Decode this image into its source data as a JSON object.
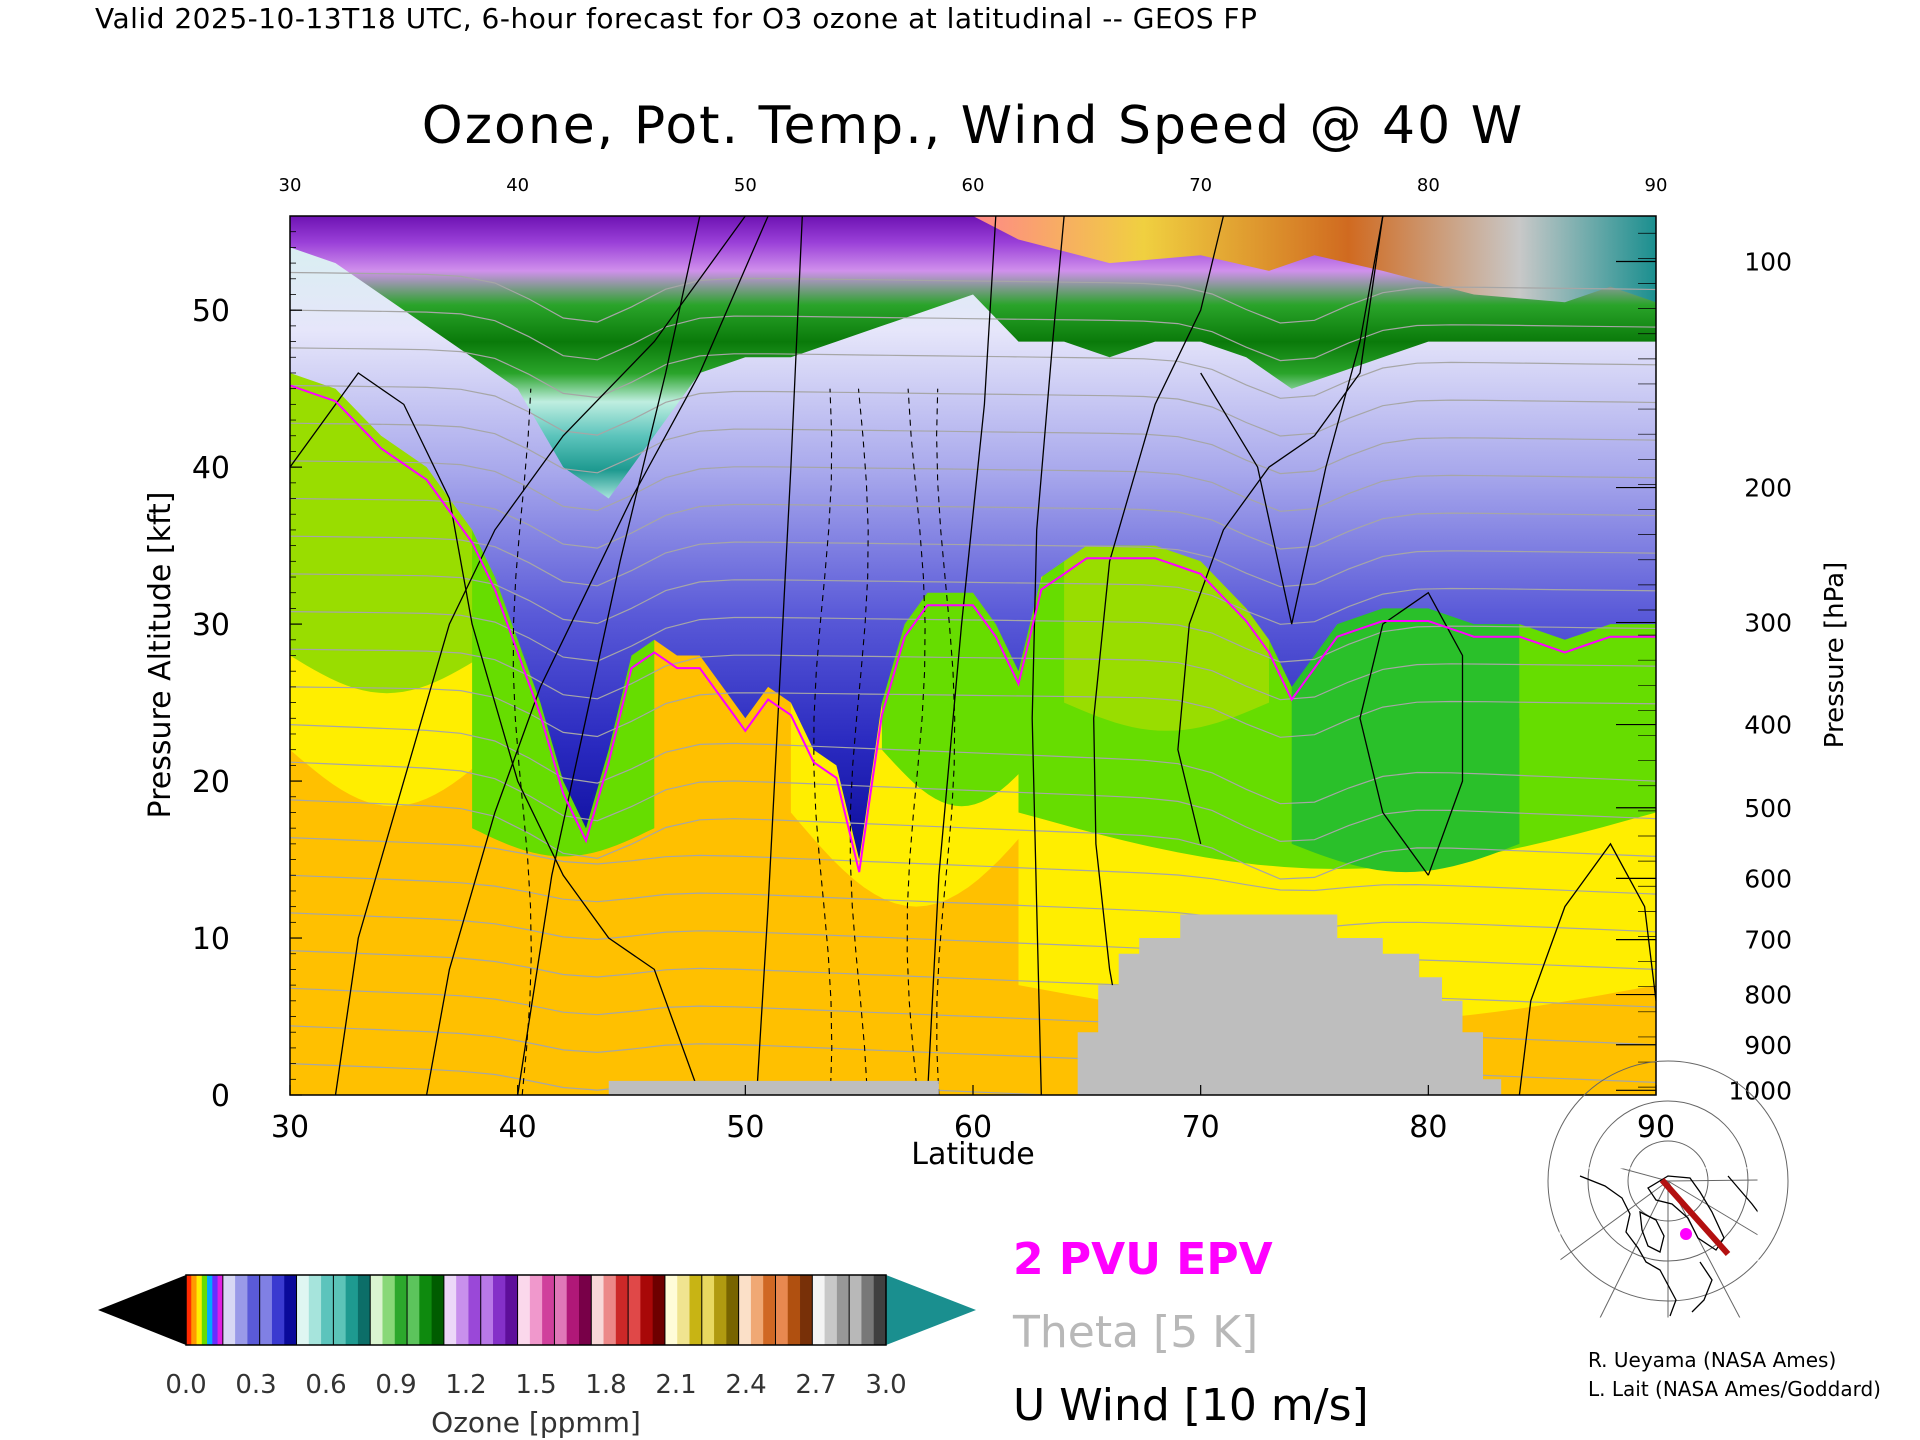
{
  "header": {
    "text": "Valid 2025-10-13T18 UTC, 6-hour forecast for O3 ozone at latitudinal -- GEOS FP"
  },
  "chart_data": {
    "type": "heatmap",
    "title": "Ozone, Pot. Temp., Wind Speed @ 40 W",
    "xlabel": "Latitude",
    "ylabel": "Pressure Altitude [kft]",
    "y2label": "Pressure [hPa]",
    "xlim": [
      30,
      90
    ],
    "ylim": [
      0,
      56
    ],
    "x_ticks": [
      30,
      40,
      50,
      60,
      70,
      80,
      90
    ],
    "y_ticks": [
      0,
      10,
      20,
      30,
      40,
      50
    ],
    "top_ticks": [
      30,
      40,
      50,
      60,
      70,
      80,
      90
    ],
    "pressure_ticks": [
      {
        "hpa": 100,
        "kft": 53.1
      },
      {
        "hpa": 200,
        "kft": 38.7
      },
      {
        "hpa": 300,
        "kft": 30.1
      },
      {
        "hpa": 400,
        "kft": 23.6
      },
      {
        "hpa": 500,
        "kft": 18.3
      },
      {
        "hpa": 600,
        "kft": 13.8
      },
      {
        "hpa": 700,
        "kft": 9.9
      },
      {
        "hpa": 800,
        "kft": 6.4
      },
      {
        "hpa": 900,
        "kft": 3.2
      },
      {
        "hpa": 1000,
        "kft": 0.3
      }
    ],
    "ozone_tropopause_kft": [
      [
        30,
        46
      ],
      [
        32,
        45
      ],
      [
        34,
        42
      ],
      [
        36,
        40
      ],
      [
        38,
        36
      ],
      [
        39,
        33
      ],
      [
        40,
        29
      ],
      [
        41,
        25
      ],
      [
        42,
        20
      ],
      [
        43,
        17
      ],
      [
        44,
        22
      ],
      [
        45,
        28
      ],
      [
        46,
        29
      ],
      [
        47,
        28
      ],
      [
        48,
        28
      ],
      [
        49,
        26
      ],
      [
        50,
        24
      ],
      [
        51,
        26
      ],
      [
        52,
        25
      ],
      [
        53,
        22
      ],
      [
        54,
        21
      ],
      [
        55,
        15
      ],
      [
        56,
        25
      ],
      [
        57,
        30
      ],
      [
        58,
        32
      ],
      [
        59,
        32
      ],
      [
        60,
        32
      ],
      [
        61,
        30
      ],
      [
        62,
        27
      ],
      [
        63,
        33
      ],
      [
        64,
        34
      ],
      [
        65,
        35
      ],
      [
        66,
        35
      ],
      [
        68,
        35
      ],
      [
        70,
        34
      ],
      [
        72,
        31
      ],
      [
        73,
        29
      ],
      [
        74,
        26
      ],
      [
        75,
        28
      ],
      [
        76,
        30
      ],
      [
        78,
        31
      ],
      [
        80,
        31
      ],
      [
        82,
        30
      ],
      [
        84,
        30
      ],
      [
        86,
        29
      ],
      [
        88,
        30
      ],
      [
        90,
        30
      ]
    ],
    "stratosphere_base_kft": [
      [
        30,
        54
      ],
      [
        32,
        53
      ],
      [
        34,
        51
      ],
      [
        36,
        49
      ],
      [
        38,
        47
      ],
      [
        40,
        45
      ],
      [
        42,
        40
      ],
      [
        44,
        38
      ],
      [
        46,
        42
      ],
      [
        48,
        46
      ],
      [
        50,
        47
      ],
      [
        52,
        47
      ],
      [
        54,
        48
      ],
      [
        56,
        49
      ],
      [
        58,
        50
      ],
      [
        60,
        51
      ],
      [
        62,
        48
      ],
      [
        64,
        48
      ],
      [
        66,
        47
      ],
      [
        68,
        48
      ],
      [
        70,
        48
      ],
      [
        72,
        47
      ],
      [
        74,
        45
      ],
      [
        76,
        46
      ],
      [
        78,
        47
      ],
      [
        80,
        48
      ],
      [
        82,
        48
      ],
      [
        84,
        48
      ],
      [
        86,
        48
      ],
      [
        88,
        48
      ],
      [
        90,
        48
      ]
    ],
    "terrain_kft": [
      [
        64.6,
        0
      ],
      [
        64.6,
        4
      ],
      [
        65.5,
        4
      ],
      [
        65.5,
        7
      ],
      [
        66.4,
        7
      ],
      [
        66.4,
        9
      ],
      [
        67.3,
        9
      ],
      [
        67.3,
        10
      ],
      [
        69.1,
        10
      ],
      [
        69.1,
        11.5
      ],
      [
        76,
        11.5
      ],
      [
        76,
        10
      ],
      [
        78,
        10
      ],
      [
        78,
        9
      ],
      [
        79.6,
        9
      ],
      [
        79.6,
        7.5
      ],
      [
        80.6,
        7.5
      ],
      [
        80.6,
        6
      ],
      [
        81.5,
        6
      ],
      [
        81.5,
        4
      ],
      [
        82.4,
        4
      ],
      [
        82.4,
        1
      ],
      [
        83.2,
        1
      ],
      [
        83.2,
        0
      ]
    ],
    "low_terrain": {
      "lat_from": 44,
      "lat_to": 58.5,
      "kft": 0.9
    },
    "wind_zero_lats": [
      40.2,
      53.4,
      55.0,
      57.5,
      58.8
    ],
    "colorbar": {
      "title": "Ozone [ppmm]",
      "min": 0.0,
      "max": 3.0,
      "labels": [
        "0.0",
        "0.3",
        "0.6",
        "0.9",
        "1.2",
        "1.5",
        "1.8",
        "2.1",
        "2.4",
        "2.7",
        "3.0"
      ],
      "under_color": "#000000",
      "over_color": "#1a8f8f",
      "segment_colors": [
        [
          "#ff2a00",
          "#ff9900",
          "#ffee00",
          "#66dd00",
          "#00aaff",
          "#6a2cff",
          "#e020e0"
        ],
        [
          "#d8d8f4",
          "#9a9ae8",
          "#5a5ad8"
        ],
        [
          "#8080e4",
          "#3a3ad0",
          "#0a0a9a"
        ],
        [
          "#dff6f2",
          "#a6e4dc",
          "#5cc4bc"
        ],
        [
          "#5cc4b8",
          "#1e9a90",
          "#0c6e68"
        ],
        [
          "#daf4d0",
          "#88d878",
          "#2ca82c"
        ],
        [
          "#5cc45c",
          "#0e8a0e",
          "#005c00"
        ],
        [
          "#ecd8f8",
          "#c890ec",
          "#9a48d8"
        ],
        [
          "#b878e8",
          "#8430c8",
          "#5e0e9a"
        ],
        [
          "#fbd8ec",
          "#f098cc",
          "#d0409c"
        ],
        [
          "#e078b8",
          "#b01878",
          "#780048"
        ],
        [
          "#f8d8d8",
          "#ec8888",
          "#cc2828"
        ],
        [
          "#e04848",
          "#a80808",
          "#6e0000"
        ],
        [
          "#fffcd8",
          "#f0e490",
          "#c8b414"
        ],
        [
          "#e8d860",
          "#b09a10",
          "#786400"
        ],
        [
          "#fbe0c8",
          "#f0a874",
          "#d06824"
        ],
        [
          "#e88850",
          "#b05010",
          "#783008"
        ],
        [
          "#f4f4f4",
          "#c8c8c8",
          "#989898"
        ],
        [
          "#b8b8b8",
          "#787878",
          "#404040"
        ]
      ]
    },
    "legend": [
      {
        "label": "2 PVU EPV",
        "color": "#ff00ff"
      },
      {
        "label": "Theta [5 K]",
        "color": "#b8b8b8"
      },
      {
        "label": "U Wind [10 m/s]",
        "color": "#000000"
      }
    ]
  },
  "credits": [
    "R. Ueyama (NASA Ames)",
    "L. Lait (NASA Ames/Goddard)"
  ]
}
